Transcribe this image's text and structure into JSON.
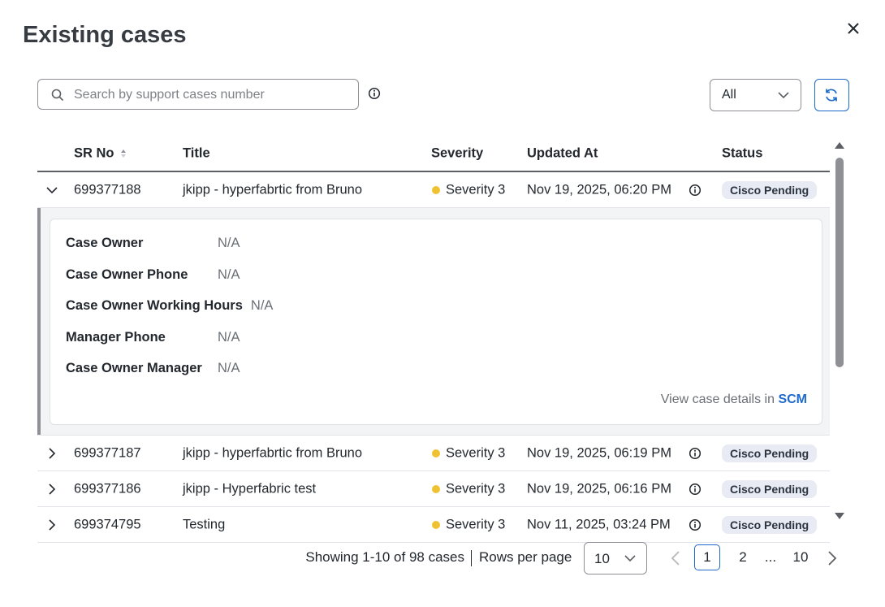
{
  "dialog": {
    "title": "Existing cases"
  },
  "search": {
    "placeholder": "Search by support cases number"
  },
  "filter": {
    "selected": "All"
  },
  "table": {
    "columns": [
      "SR No",
      "Title",
      "Severity",
      "Updated At",
      "Status"
    ],
    "rows": [
      {
        "sr_no": "699377188",
        "title": "jkipp - hyperfabrtic from Bruno",
        "severity": "Severity 3",
        "updated_at": "Nov 19, 2025, 06:20 PM",
        "status": "Cisco Pending",
        "details": {
          "fields": [
            {
              "label": "Case Owner",
              "value": "N/A"
            },
            {
              "label": "Case Owner Phone",
              "value": "N/A"
            },
            {
              "label": "Case Owner Working Hours",
              "value": "N/A"
            },
            {
              "label": "Manager Phone",
              "value": "N/A"
            },
            {
              "label": "Case Owner Manager",
              "value": "N/A"
            }
          ],
          "link_prefix": "View case details in",
          "link": "SCM"
        }
      },
      {
        "sr_no": "699377187",
        "title": "jkipp - hyperfabrtic from Bruno",
        "severity": "Severity 3",
        "updated_at": "Nov 19, 2025, 06:19 PM",
        "status": "Cisco Pending"
      },
      {
        "sr_no": "699377186",
        "title": "jkipp - Hyperfabric test",
        "severity": "Severity 3",
        "updated_at": "Nov 19, 2025, 06:16 PM",
        "status": "Cisco Pending"
      },
      {
        "sr_no": "699374795",
        "title": "Testing",
        "severity": "Severity 3",
        "updated_at": "Nov 11, 2025, 03:24 PM",
        "status": "Cisco Pending"
      }
    ]
  },
  "pagination": {
    "summary": "Showing 1-10 of 98 cases",
    "rows_per_page_label": "Rows per page",
    "rows_per_page": "10",
    "pages": [
      "1",
      "2",
      "...",
      "10"
    ]
  }
}
